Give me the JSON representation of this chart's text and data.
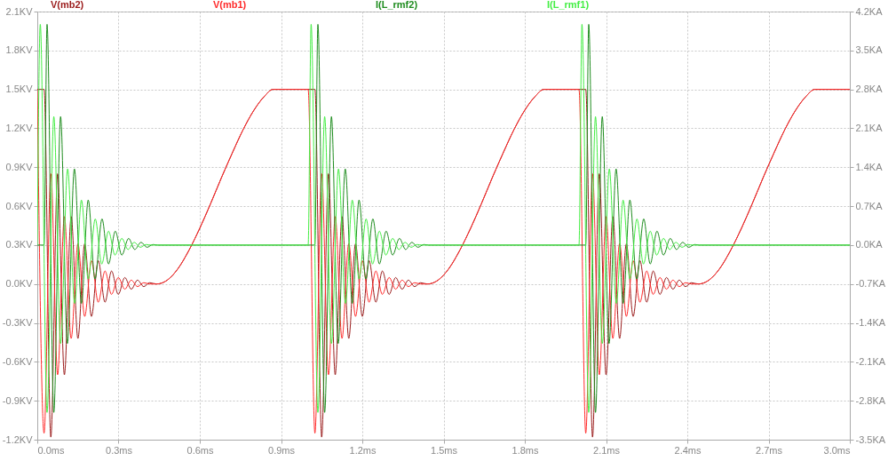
{
  "chart_data": {
    "type": "line",
    "grid": true,
    "legend": "top",
    "xlim": [
      0,
      3
    ],
    "xticks": [
      {
        "value": 0,
        "label": "0.0ms"
      },
      {
        "value": 0.3,
        "label": "0.3ms"
      },
      {
        "value": 0.6,
        "label": "0.6ms"
      },
      {
        "value": 0.9,
        "label": "0.9ms"
      },
      {
        "value": 1.2,
        "label": "1.2ms"
      },
      {
        "value": 1.5,
        "label": "1.5ms"
      },
      {
        "value": 1.8,
        "label": "1.8ms"
      },
      {
        "value": 2.1,
        "label": "2.1ms"
      },
      {
        "value": 2.4,
        "label": "2.4ms"
      },
      {
        "value": 2.7,
        "label": "2.7ms"
      },
      {
        "value": 3,
        "label": "3.0ms"
      }
    ],
    "ylim": [
      -1.2,
      2.1
    ],
    "yticks": [
      {
        "value": -1.2,
        "label": "-1.2KV"
      },
      {
        "value": -0.9,
        "label": "-0.9KV"
      },
      {
        "value": -0.6,
        "label": "-0.6KV"
      },
      {
        "value": -0.3,
        "label": "-0.3KV"
      },
      {
        "value": 0,
        "label": "0.0KV"
      },
      {
        "value": 0.3,
        "label": "0.3KV"
      },
      {
        "value": 0.6,
        "label": "0.6KV"
      },
      {
        "value": 0.9,
        "label": "0.9KV"
      },
      {
        "value": 1.2,
        "label": "1.2KV"
      },
      {
        "value": 1.5,
        "label": "1.5KV"
      },
      {
        "value": 1.8,
        "label": "1.8KV"
      },
      {
        "value": 2.1,
        "label": "2.1KV"
      }
    ],
    "y2lim": [
      -3.5,
      4.2
    ],
    "y2ticks": [
      {
        "value": -3.5,
        "label": "-3.5KA"
      },
      {
        "value": -2.8,
        "label": "-2.8KA"
      },
      {
        "value": -2.1,
        "label": "-2.1KA"
      },
      {
        "value": -1.4,
        "label": "-1.4KA"
      },
      {
        "value": -0.7,
        "label": "-0.7KA"
      },
      {
        "value": 0,
        "label": "0.0KA"
      },
      {
        "value": 0.7,
        "label": "0.7KA"
      },
      {
        "value": 1.4,
        "label": "1.4KA"
      },
      {
        "value": 2.1,
        "label": "2.1KA"
      },
      {
        "value": 2.8,
        "label": "2.8KA"
      },
      {
        "value": 3.5,
        "label": "3.5KA"
      },
      {
        "value": 4.2,
        "label": "4.2KA"
      }
    ],
    "series": [
      {
        "name": "V(mb2)",
        "color": "#9b1c1c",
        "x": [
          0,
          0.025,
          0.05,
          0.075,
          0.1,
          0.125,
          0.15,
          0.175,
          0.2,
          0.225,
          0.25,
          0.274,
          0.299,
          0.323,
          0.347,
          0.37,
          0.393,
          0.415,
          0.44,
          0.48,
          0.52,
          0.56,
          0.6,
          0.64,
          0.68,
          0.72,
          0.76,
          0.8,
          0.84,
          0.87,
          1,
          1.025,
          1.05,
          1.075,
          1.1,
          1.125,
          1.15,
          1.175,
          1.2,
          1.225,
          1.25,
          1.274,
          1.299,
          1.323,
          1.347,
          1.37,
          1.393,
          1.415,
          1.44,
          1.48,
          1.52,
          1.56,
          1.6,
          1.64,
          1.68,
          1.72,
          1.76,
          1.8,
          1.84,
          1.87,
          2,
          2.025,
          2.05,
          2.075,
          2.1,
          2.125,
          2.15,
          2.175,
          2.2,
          2.225,
          2.25,
          2.274,
          2.299,
          2.323,
          2.347,
          2.37,
          2.393,
          2.415,
          2.44,
          2.48,
          2.52,
          2.56,
          2.6,
          2.64,
          2.68,
          2.72,
          2.76,
          2.8,
          2.84,
          2.87,
          3
        ],
        "values": [
          1.5,
          1.5,
          -1.18,
          0.85,
          -0.7,
          0.52,
          -0.42,
          0.31,
          -0.25,
          0.18,
          -0.14,
          0.1,
          -0.08,
          0.05,
          -0.04,
          0.03,
          -0.02,
          0.01,
          0,
          0.03,
          0.12,
          0.26,
          0.43,
          0.62,
          0.82,
          1.01,
          1.19,
          1.34,
          1.45,
          1.5,
          1.5,
          1.5,
          -1.18,
          0.85,
          -0.7,
          0.52,
          -0.42,
          0.31,
          -0.25,
          0.18,
          -0.14,
          0.1,
          -0.08,
          0.05,
          -0.04,
          0.03,
          -0.02,
          0.01,
          0,
          0.03,
          0.12,
          0.26,
          0.43,
          0.62,
          0.82,
          1.01,
          1.19,
          1.34,
          1.45,
          1.5,
          1.5,
          1.5,
          -1.18,
          0.85,
          -0.7,
          0.52,
          -0.42,
          0.31,
          -0.25,
          0.18,
          -0.14,
          0.1,
          -0.08,
          0.05,
          -0.04,
          0.03,
          -0.02,
          0.01,
          0,
          0.03,
          0.12,
          0.26,
          0.43,
          0.62,
          0.82,
          1.01,
          1.19,
          1.34,
          1.45,
          1.5,
          1.5
        ]
      },
      {
        "name": "V(mb1)",
        "color": "#ff2a2a",
        "x": [
          0,
          0.025,
          0.05,
          0.075,
          0.1,
          0.125,
          0.15,
          0.175,
          0.2,
          0.225,
          0.25,
          0.274,
          0.299,
          0.323,
          0.347,
          0.37,
          0.393,
          0.415,
          0.44,
          0.48,
          0.52,
          0.56,
          0.6,
          0.64,
          0.68,
          0.72,
          0.76,
          0.8,
          0.84,
          0.87,
          1,
          1.025,
          1.05,
          1.075,
          1.1,
          1.125,
          1.15,
          1.175,
          1.2,
          1.225,
          1.25,
          1.274,
          1.299,
          1.323,
          1.347,
          1.37,
          1.393,
          1.415,
          1.44,
          1.48,
          1.52,
          1.56,
          1.6,
          1.64,
          1.68,
          1.72,
          1.76,
          1.8,
          1.84,
          1.87,
          2,
          2.025,
          2.05,
          2.075,
          2.1,
          2.125,
          2.15,
          2.175,
          2.2,
          2.225,
          2.25,
          2.274,
          2.299,
          2.323,
          2.347,
          2.37,
          2.393,
          2.415,
          2.44,
          2.48,
          2.52,
          2.56,
          2.6,
          2.64,
          2.68,
          2.72,
          2.76,
          2.8,
          2.84,
          2.87,
          3
        ],
        "values": [
          1.5,
          -1.15,
          0.85,
          -0.7,
          0.52,
          -0.42,
          0.31,
          -0.25,
          0.18,
          -0.14,
          0.1,
          -0.08,
          0.05,
          -0.04,
          0.03,
          -0.02,
          0.01,
          0,
          0,
          0.03,
          0.12,
          0.26,
          0.43,
          0.62,
          0.82,
          1.01,
          1.19,
          1.34,
          1.45,
          1.5,
          1.5,
          -1.15,
          0.85,
          -0.7,
          0.52,
          -0.42,
          0.31,
          -0.25,
          0.18,
          -0.14,
          0.1,
          -0.08,
          0.05,
          -0.04,
          0.03,
          -0.02,
          0.01,
          0,
          0,
          0.03,
          0.12,
          0.26,
          0.43,
          0.62,
          0.82,
          1.01,
          1.19,
          1.34,
          1.45,
          1.5,
          1.5,
          -1.15,
          0.85,
          -0.7,
          0.52,
          -0.42,
          0.31,
          -0.25,
          0.18,
          -0.14,
          0.1,
          -0.08,
          0.05,
          -0.04,
          0.03,
          -0.02,
          0.01,
          0,
          0,
          0.03,
          0.12,
          0.26,
          0.43,
          0.62,
          0.82,
          1.01,
          1.19,
          1.34,
          1.45,
          1.5,
          1.5
        ]
      },
      {
        "name": "I(L_rmf2)",
        "color": "#1e8c1e",
        "axis": "y2",
        "x": [
          0,
          0.025,
          0.036,
          0.061,
          0.086,
          0.111,
          0.137,
          0.163,
          0.188,
          0.213,
          0.239,
          0.263,
          0.288,
          0.312,
          0.337,
          0.36,
          0.383,
          0.405,
          0.427,
          0.445,
          1,
          1.025,
          1.036,
          1.061,
          1.086,
          1.111,
          1.137,
          1.163,
          1.188,
          1.213,
          1.239,
          1.263,
          1.288,
          1.312,
          1.337,
          1.36,
          1.383,
          1.405,
          1.427,
          1.445,
          2,
          2.025,
          2.036,
          2.061,
          2.086,
          2.111,
          2.137,
          2.163,
          2.188,
          2.213,
          2.239,
          2.263,
          2.288,
          2.312,
          2.337,
          2.36,
          2.383,
          2.405,
          2.427,
          2.445,
          3
        ],
        "values": [
          0,
          0,
          3.97,
          -3.01,
          2.31,
          -1.77,
          1.37,
          -1.05,
          0.81,
          -0.61,
          0.47,
          -0.34,
          0.25,
          -0.18,
          0.12,
          -0.08,
          0.05,
          -0.04,
          0.01,
          0,
          0,
          0,
          3.97,
          -3.01,
          2.31,
          -1.77,
          1.37,
          -1.05,
          0.81,
          -0.61,
          0.47,
          -0.34,
          0.25,
          -0.18,
          0.12,
          -0.08,
          0.05,
          -0.04,
          0.01,
          0,
          0,
          0,
          3.97,
          -3.01,
          2.31,
          -1.77,
          1.37,
          -1.05,
          0.81,
          -0.61,
          0.47,
          -0.34,
          0.25,
          -0.18,
          0.12,
          -0.08,
          0.05,
          -0.04,
          0.01,
          0,
          0
        ]
      },
      {
        "name": "I(L_rmf1)",
        "color": "#44ee44",
        "axis": "y2",
        "x": [
          0,
          0.011,
          0.036,
          0.061,
          0.086,
          0.112,
          0.138,
          0.163,
          0.188,
          0.214,
          0.238,
          0.263,
          0.287,
          0.312,
          0.335,
          0.358,
          0.38,
          0.402,
          0.42,
          1,
          1.011,
          1.036,
          1.061,
          1.086,
          1.112,
          1.138,
          1.163,
          1.188,
          1.214,
          1.238,
          1.263,
          1.287,
          1.312,
          1.335,
          1.358,
          1.38,
          1.402,
          1.42,
          2,
          2.011,
          2.036,
          2.061,
          2.086,
          2.112,
          2.138,
          2.163,
          2.188,
          2.214,
          2.238,
          2.263,
          2.287,
          2.312,
          2.335,
          2.358,
          2.38,
          2.402,
          2.42,
          3
        ],
        "values": [
          0,
          3.97,
          -3.01,
          2.31,
          -1.77,
          1.37,
          -1.05,
          0.81,
          -0.61,
          0.47,
          -0.34,
          0.25,
          -0.18,
          0.12,
          -0.08,
          0.05,
          -0.04,
          0.01,
          0,
          0,
          3.97,
          -3.01,
          2.31,
          -1.77,
          1.37,
          -1.05,
          0.81,
          -0.61,
          0.47,
          -0.34,
          0.25,
          -0.18,
          0.12,
          -0.08,
          0.05,
          -0.04,
          0.01,
          0,
          0,
          3.97,
          -3.01,
          2.31,
          -1.77,
          1.37,
          -1.05,
          0.81,
          -0.61,
          0.47,
          -0.34,
          0.25,
          -0.18,
          0.12,
          -0.08,
          0.05,
          -0.04,
          0.01,
          0,
          0
        ]
      }
    ]
  }
}
